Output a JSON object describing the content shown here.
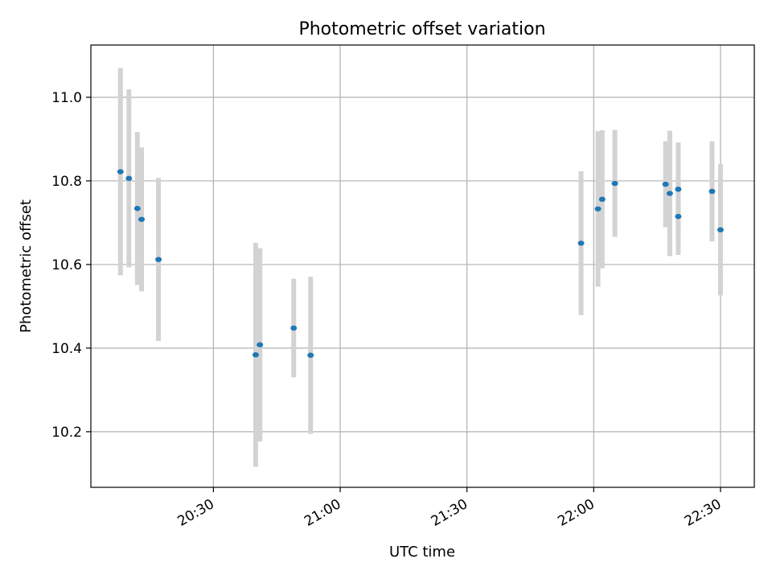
{
  "chart_data": {
    "type": "scatter",
    "title": "Photometric offset variation",
    "xlabel": "UTC time",
    "ylabel": "Photometric offset",
    "x_ticks": [
      "20:30",
      "21:00",
      "21:30",
      "22:00",
      "22:30"
    ],
    "y_ticks": [
      "10.2",
      "10.4",
      "10.6",
      "10.8",
      "11.0"
    ],
    "xlim": [
      "20:01",
      "22:38"
    ],
    "ylim": [
      10.067,
      11.125
    ],
    "grid": true,
    "marker_color": "#1f77b4",
    "errorbar_color": "#d3d3d3",
    "series": [
      {
        "points": [
          {
            "x": "20:08",
            "y": 10.822,
            "err": 0.248
          },
          {
            "x": "20:10",
            "y": 10.806,
            "err": 0.213
          },
          {
            "x": "20:12",
            "y": 10.734,
            "err": 0.183
          },
          {
            "x": "20:13",
            "y": 10.708,
            "err": 0.172
          },
          {
            "x": "20:17",
            "y": 10.612,
            "err": 0.195
          },
          {
            "x": "20:40",
            "y": 10.384,
            "err": 0.268
          },
          {
            "x": "20:41",
            "y": 10.408,
            "err": 0.231
          },
          {
            "x": "20:49",
            "y": 10.448,
            "err": 0.118
          },
          {
            "x": "20:53",
            "y": 10.383,
            "err": 0.188
          },
          {
            "x": "21:57",
            "y": 10.651,
            "err": 0.172
          },
          {
            "x": "22:01",
            "y": 10.733,
            "err": 0.186
          },
          {
            "x": "22:02",
            "y": 10.756,
            "err": 0.165
          },
          {
            "x": "22:05",
            "y": 10.794,
            "err": 0.128
          },
          {
            "x": "22:17",
            "y": 10.792,
            "err": 0.103
          },
          {
            "x": "22:18",
            "y": 10.77,
            "err": 0.15
          },
          {
            "x": "22:20",
            "y": 10.715,
            "err": 0.092
          },
          {
            "x": "22:20",
            "y": 10.78,
            "err": 0.112
          },
          {
            "x": "22:28",
            "y": 10.775,
            "err": 0.12
          },
          {
            "x": "22:30",
            "y": 10.683,
            "err": 0.157
          }
        ]
      }
    ]
  }
}
